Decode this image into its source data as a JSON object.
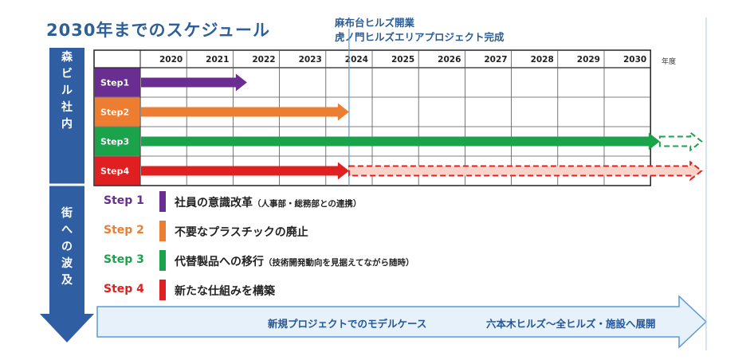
{
  "title": "2030年までのスケジュール",
  "milestone": {
    "line1": "麻布台ヒルズ開業",
    "line2": "虎ノ門ヒルズエリアプロジェクト完成",
    "year": 2023.5
  },
  "year_unit": "年度",
  "years": [
    "2020",
    "2021",
    "2022",
    "2023",
    "2024",
    "2025",
    "2026",
    "2027",
    "2028",
    "2029",
    "2030"
  ],
  "left_axis": {
    "top_chars": [
      "森",
      "ビ",
      "ル",
      "社",
      "内"
    ],
    "bottom_chars": [
      "街",
      "へ",
      "の",
      "波",
      "及"
    ]
  },
  "rows": [
    {
      "label": "Step1",
      "color": "#6a2d91",
      "end_year": 2021.3,
      "dashed_end_year": null
    },
    {
      "label": "Step2",
      "color": "#ed7d31",
      "end_year": 2023.5,
      "dashed_end_year": null
    },
    {
      "label": "Step3",
      "color": "#1aa34a",
      "end_year": 2030.2,
      "dashed_end_year": 2031.1
    },
    {
      "label": "Step4",
      "color": "#e02020",
      "end_year": 2023.5,
      "dashed_end_year": 2031.1
    }
  ],
  "legend": [
    {
      "step": "Step 1",
      "color": "#6a2d91",
      "text": "社員の意識改革",
      "note": "（人事部・総務部との連携）"
    },
    {
      "step": "Step 2",
      "color": "#ed7d31",
      "text": "不要なプラスチックの廃止",
      "note": ""
    },
    {
      "step": "Step 3",
      "color": "#1aa34a",
      "text": "代替製品への移行",
      "note": "（技術開発動向を見据えてながら随時）"
    },
    {
      "step": "Step 4",
      "color": "#e02020",
      "text": "新たな仕組みを構築",
      "note": ""
    }
  ],
  "bottom_banner": {
    "left_text": "新規プロジェクトでのモデルケース",
    "right_text": "六本木ヒルズ〜全ヒルズ・施設へ展開"
  },
  "colors": {
    "title_blue": "#2e5f97",
    "axis_arrow": "#2f5ea3",
    "banner_light": "#e6f1fa",
    "banner_border": "#5b9bd5",
    "dashed_fill_red": "#fbd3c9"
  }
}
